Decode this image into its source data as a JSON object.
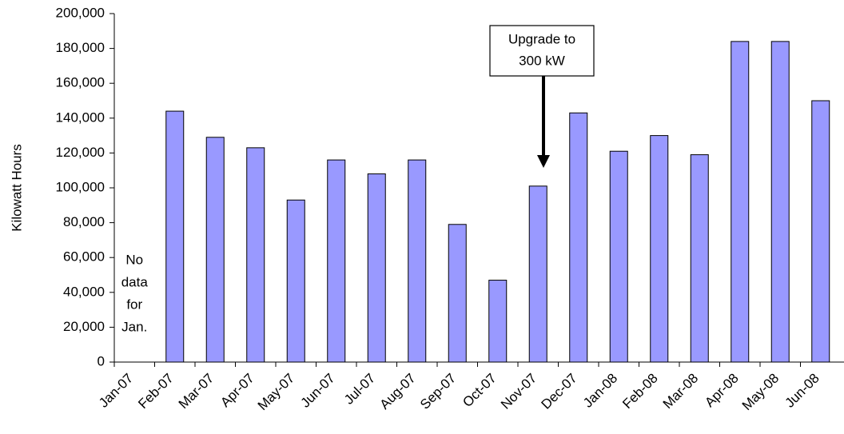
{
  "chart_data": {
    "type": "bar",
    "y_label": "Kilowatt Hours",
    "categories": [
      "Jan-07",
      "Feb-07",
      "Mar-07",
      "Apr-07",
      "May-07",
      "Jun-07",
      "Jul-07",
      "Aug-07",
      "Sep-07",
      "Oct-07",
      "Nov-07",
      "Dec-07",
      "Jan-08",
      "Feb-08",
      "Mar-08",
      "Apr-08",
      "May-08",
      "Jun-08"
    ],
    "values": [
      null,
      144000,
      129000,
      123000,
      93000,
      116000,
      108000,
      116000,
      79000,
      47000,
      101000,
      143000,
      121000,
      130000,
      119000,
      184000,
      184000,
      150000
    ],
    "color": "#9999ff",
    "ylim": [
      0,
      200000
    ],
    "yticks": [
      0,
      {
        "value": 20000,
        "label": "20,000"
      },
      {
        "value": 40000,
        "label": "40,000"
      },
      {
        "value": 60000,
        "label": "60,000"
      },
      {
        "value": 80000,
        "label": "80,000"
      },
      {
        "value": 100000,
        "label": "100,000"
      },
      {
        "value": 120000,
        "label": "120,000"
      },
      {
        "value": 140000,
        "label": "140,000"
      },
      {
        "value": 160000,
        "label": "160,000"
      },
      {
        "value": 180000,
        "label": "180,000"
      },
      {
        "value": 200000,
        "label": "200,000"
      }
    ],
    "grid": false,
    "annotations": [
      {
        "lines": [
          "No",
          "data",
          "for",
          "Jan."
        ]
      },
      {
        "lines": [
          "Upgrade to",
          "300 kW"
        ]
      }
    ]
  }
}
